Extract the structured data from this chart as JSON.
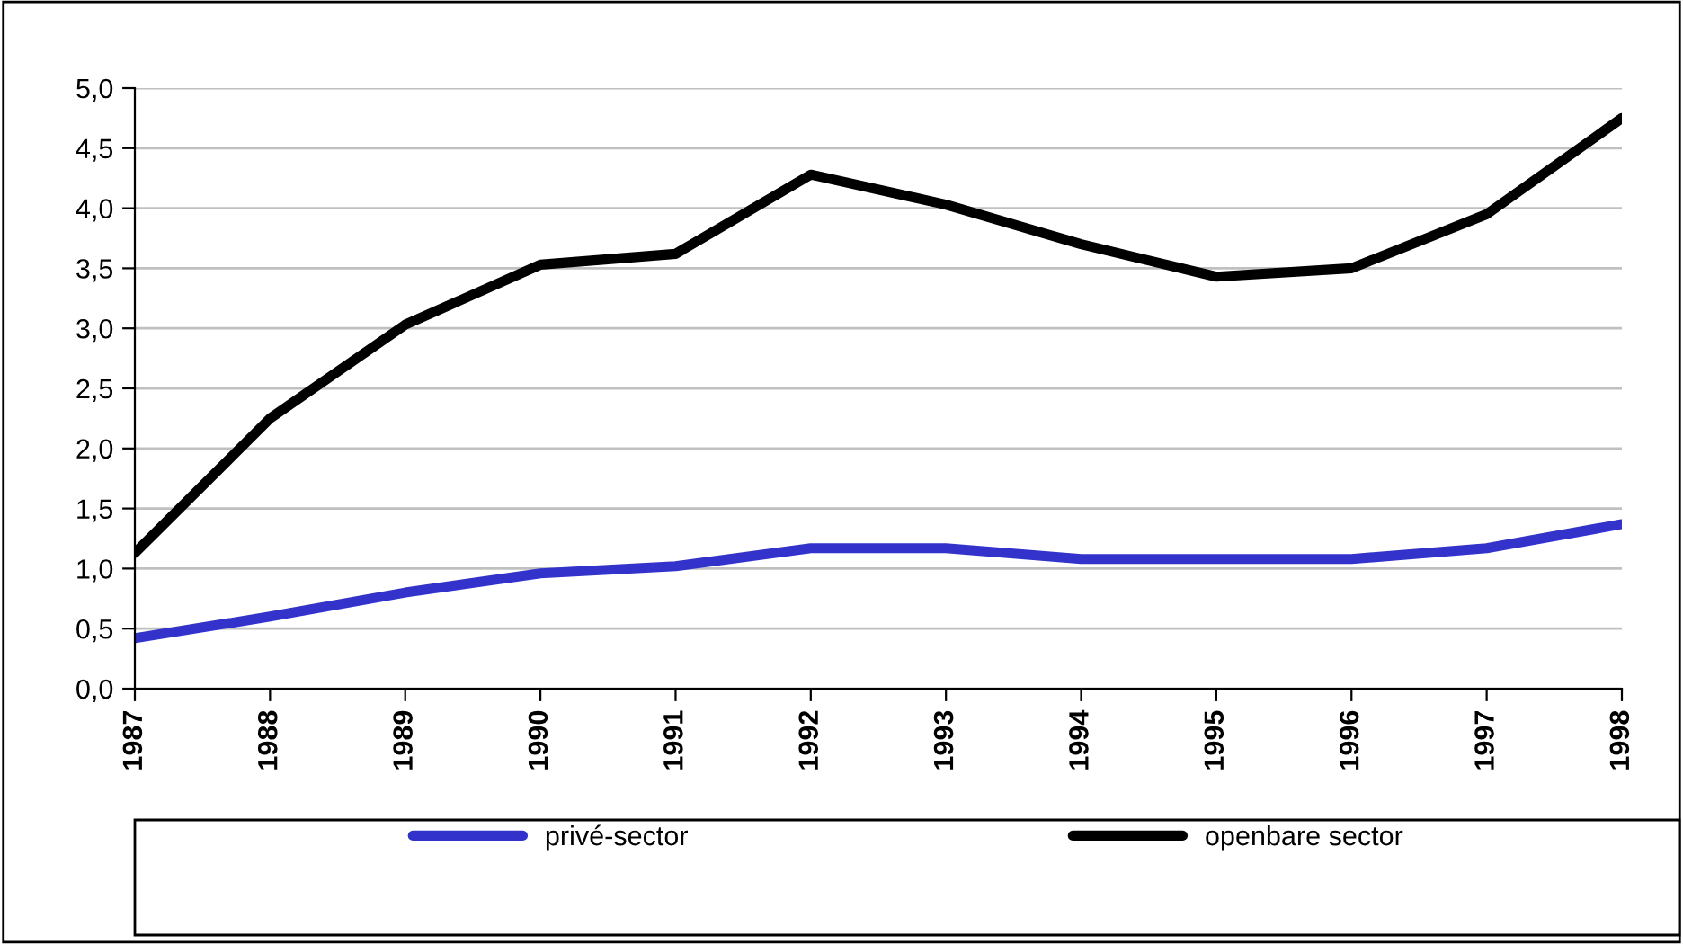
{
  "chart_data": {
    "type": "line",
    "categories": [
      "1987",
      "1988",
      "1989",
      "1990",
      "1991",
      "1992",
      "1993",
      "1994",
      "1995",
      "1996",
      "1997",
      "1998"
    ],
    "series": [
      {
        "name": "privé-sector",
        "color": "#3333cc",
        "values": [
          0.42,
          0.6,
          0.8,
          0.96,
          1.02,
          1.17,
          1.17,
          1.08,
          1.08,
          1.08,
          1.17,
          1.37
        ]
      },
      {
        "name": "openbare sector",
        "color": "#000000",
        "values": [
          1.13,
          2.25,
          3.03,
          3.53,
          3.62,
          4.28,
          4.03,
          3.7,
          3.43,
          3.5,
          3.95,
          4.75
        ]
      }
    ],
    "ylim": [
      0,
      5
    ],
    "yticks": [
      {
        "value": 0,
        "label": "0,0"
      },
      {
        "value": 0.5,
        "label": "0,5"
      },
      {
        "value": 1,
        "label": "1,0"
      },
      {
        "value": 1.5,
        "label": "1,5"
      },
      {
        "value": 2,
        "label": "2,0"
      },
      {
        "value": 2.5,
        "label": "2,5"
      },
      {
        "value": 3,
        "label": "3,0"
      },
      {
        "value": 3.5,
        "label": "3,5"
      },
      {
        "value": 4,
        "label": "4,0"
      },
      {
        "value": 4.5,
        "label": "4,5"
      },
      {
        "value": 5,
        "label": "5,0"
      }
    ],
    "grid": "y",
    "legend": "bottom",
    "marker": "none",
    "line_style": "solid"
  }
}
